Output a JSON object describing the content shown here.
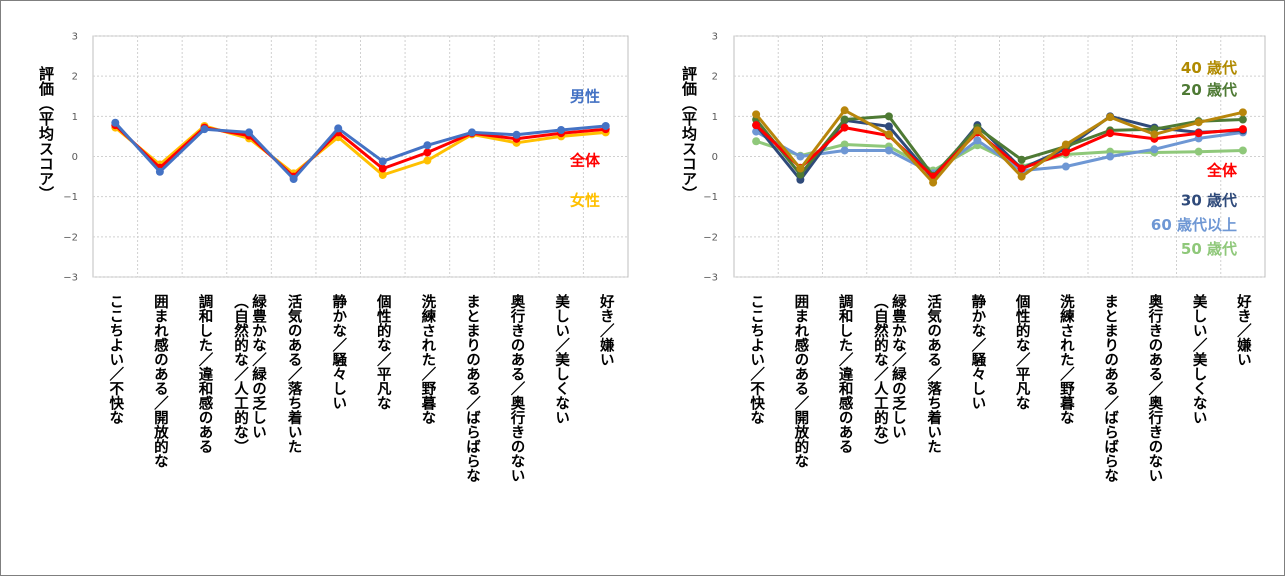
{
  "chart_data": [
    {
      "type": "line",
      "ylabel": "評価（平均スコア）",
      "ylim": [
        -3,
        3
      ],
      "yticks": [
        "3",
        "2",
        "1",
        "0",
        "−1",
        "−2",
        "−3"
      ],
      "grid": true,
      "categories": [
        "ここちよい／不快な",
        "囲まれ感のある／開放的な",
        "調和した／違和感のある",
        "緑豊かな／緑の乏しい（自然的な／人工的な）",
        "活気のある／落ち着いた",
        "静かな／騒々しい",
        "個性的な／平凡な",
        "洗練された／野暮な",
        "まとまりのある／ばらばらな",
        "奥行きのある／奥行きのない",
        "美しい／美しくない",
        "好き／嫌い"
      ],
      "series": [
        {
          "name": "女性",
          "color": "#FFC000",
          "values": [
            0.72,
            -0.2,
            0.76,
            0.45,
            -0.42,
            0.48,
            -0.46,
            -0.1,
            0.55,
            0.34,
            0.5,
            0.6
          ]
        },
        {
          "name": "全体",
          "color": "#FF0000",
          "values": [
            0.78,
            -0.28,
            0.72,
            0.52,
            -0.5,
            0.6,
            -0.3,
            0.1,
            0.58,
            0.44,
            0.58,
            0.68
          ]
        },
        {
          "name": "男性",
          "color": "#4472C4",
          "values": [
            0.84,
            -0.38,
            0.68,
            0.6,
            -0.56,
            0.7,
            -0.12,
            0.28,
            0.6,
            0.54,
            0.66,
            0.76
          ]
        }
      ],
      "legend": [
        {
          "name": "男性",
          "color": "#4472C4",
          "y": 1.5
        },
        {
          "name": "全体",
          "color": "#FF0000",
          "y": -0.1
        },
        {
          "name": "女性",
          "color": "#FFC000",
          "y": -1.1
        }
      ]
    },
    {
      "type": "line",
      "ylabel": "評価（平均スコア）",
      "ylim": [
        -3,
        3
      ],
      "yticks": [
        "3",
        "2",
        "1",
        "0",
        "−1",
        "−2",
        "−3"
      ],
      "grid": true,
      "categories": [
        "ここちよい／不快な",
        "囲まれ感のある／開放的な",
        "調和した／違和感のある",
        "緑豊かな／緑の乏しい（自然的な／人工的な）",
        "活気のある／落ち着いた",
        "静かな／騒々しい",
        "個性的な／平凡な",
        "洗練された／野暮な",
        "まとまりのある／ばらばらな",
        "奥行きのある／奥行きのない",
        "美しい／美しくない",
        "好き／嫌い"
      ],
      "series": [
        {
          "name": "50 歳代",
          "color": "#8FC87A",
          "values": [
            0.38,
            0.02,
            0.3,
            0.25,
            -0.35,
            0.28,
            -0.25,
            0.05,
            0.12,
            0.1,
            0.12,
            0.15
          ]
        },
        {
          "name": "60 歳代以上",
          "color": "#6E97D4",
          "values": [
            0.62,
            0.0,
            0.15,
            0.15,
            -0.42,
            0.4,
            -0.35,
            -0.25,
            0.0,
            0.18,
            0.45,
            0.6
          ]
        },
        {
          "name": "30 歳代",
          "color": "#2F4A7A",
          "values": [
            0.78,
            -0.58,
            0.9,
            0.75,
            -0.55,
            0.78,
            -0.3,
            0.2,
            1.0,
            0.72,
            0.6,
            0.65
          ]
        },
        {
          "name": "20 歳代",
          "color": "#4E7A34",
          "values": [
            0.92,
            -0.45,
            0.92,
            1.0,
            -0.48,
            0.72,
            -0.08,
            0.25,
            0.65,
            0.68,
            0.88,
            0.92
          ]
        },
        {
          "name": "全体",
          "color": "#FF0000",
          "values": [
            0.78,
            -0.28,
            0.72,
            0.52,
            -0.5,
            0.6,
            -0.3,
            0.1,
            0.58,
            0.44,
            0.58,
            0.68
          ]
        },
        {
          "name": "40 歳代",
          "color": "#B8860B",
          "values": [
            1.05,
            -0.3,
            1.15,
            0.55,
            -0.65,
            0.65,
            -0.5,
            0.3,
            0.98,
            0.55,
            0.85,
            1.1
          ]
        }
      ],
      "legend": [
        {
          "name": "40 歳代",
          "color": "#B08A00",
          "y": 2.2
        },
        {
          "name": "20 歳代",
          "color": "#4E7A34",
          "y": 1.65
        },
        {
          "name": "全体",
          "color": "#FF0000",
          "y": -0.35
        },
        {
          "name": "30 歳代",
          "color": "#2F4A7A",
          "y": -1.1
        },
        {
          "name": "60 歳代以上",
          "color": "#6E97D4",
          "y": -1.7
        },
        {
          "name": "50 歳代",
          "color": "#8FC87A",
          "y": -2.3
        }
      ]
    }
  ]
}
